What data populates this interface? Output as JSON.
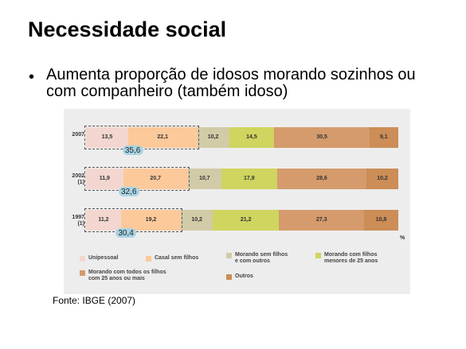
{
  "slide": {
    "title": "Necessidade social",
    "bullet": "Aumenta proporção de idosos morando sozinhos ou com companheiro (também idoso)",
    "source": "Fonte: IBGE (2007)"
  },
  "chart_data": {
    "type": "stacked-bar",
    "orientation": "horizontal",
    "categories": [
      "2007",
      "2002\n(1)",
      "1997\n(1)"
    ],
    "xlim": [
      0,
      100
    ],
    "x_label": "%",
    "series": [
      {
        "name": "Unipessoal",
        "color": "#f3d6cf",
        "values": [
          13.5,
          11.9,
          11.2
        ],
        "value_labels": [
          "13,5",
          "11,9",
          "11,2"
        ]
      },
      {
        "name": "Casal sem filhos",
        "color": "#fcc99b",
        "values": [
          22.1,
          20.7,
          19.2
        ],
        "value_labels": [
          "22,1",
          "20,7",
          "19,2"
        ]
      },
      {
        "name": "Morando sem filhos\ne com outros",
        "color": "#d2cba8",
        "values": [
          10.2,
          10.7,
          10.2
        ],
        "value_labels": [
          "10,2",
          "10,7",
          "10,2"
        ]
      },
      {
        "name": "Morando com  filhos\nmenores de 25 anos",
        "color": "#cfd55e",
        "values": [
          14.5,
          17.9,
          21.2
        ],
        "value_labels": [
          "14,5",
          "17,9",
          "21,2"
        ]
      },
      {
        "name": "Morando com todos os filhos\ncom 25 anos ou mais",
        "color": "#d59b6c",
        "values": [
          30.5,
          28.6,
          27.3
        ],
        "value_labels": [
          "30,5",
          "28,6",
          "27,3"
        ]
      },
      {
        "name": "Outros",
        "color": "#cc8d56",
        "values": [
          9.1,
          10.2,
          10.8
        ],
        "value_labels": [
          "9,1",
          "10,2",
          "10,8"
        ]
      }
    ],
    "totals": {
      "values": [
        35.6,
        32.6,
        30.4
      ],
      "value_labels": [
        "35,6",
        "32,6",
        "30,4"
      ],
      "color": "#a9d4e4"
    }
  }
}
